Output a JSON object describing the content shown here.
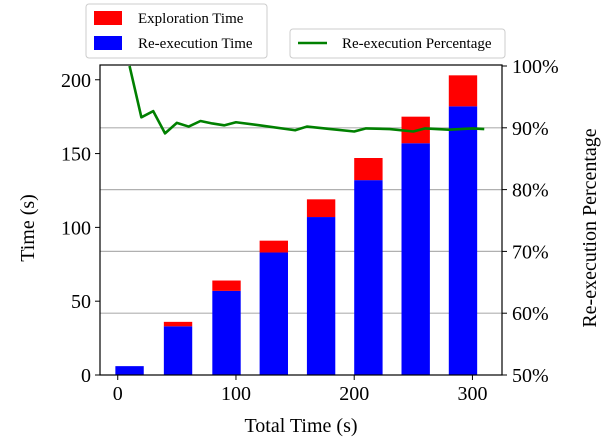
{
  "chart_data": {
    "type": "bar",
    "xlabel": "Total Time (s)",
    "ylabel": "Time (s)",
    "y2label": "Re-execution Percentage",
    "x_ticks": [
      0,
      100,
      200,
      300
    ],
    "y_ticks": [
      0,
      50,
      100,
      150,
      200
    ],
    "y2_ticks": [
      "50%",
      "60%",
      "70%",
      "80%",
      "90%",
      "100%"
    ],
    "y2_tick_values": [
      50,
      60,
      70,
      80,
      90,
      100
    ],
    "xlim": [
      -15,
      325
    ],
    "ylim": [
      0,
      210
    ],
    "y2lim": [
      50,
      100
    ],
    "stacked": true,
    "bar_width": 24,
    "x": [
      10,
      51,
      92,
      132,
      172,
      212,
      252,
      292
    ],
    "series": [
      {
        "name": "Re-execution Time",
        "color": "#0000ff",
        "values": [
          6,
          33,
          57,
          83,
          107,
          132,
          157,
          182
        ]
      },
      {
        "name": "Exploration Time",
        "color": "#ff0000",
        "values": [
          0,
          3,
          7,
          8,
          12,
          15,
          18,
          21
        ]
      }
    ],
    "line": {
      "name": "Re-execution Percentage",
      "color": "#008000",
      "axis": "right",
      "x": [
        10,
        20,
        30,
        40,
        50,
        60,
        70,
        80,
        90,
        100,
        120,
        150,
        160,
        180,
        200,
        210,
        230,
        250,
        260,
        280,
        300,
        310
      ],
      "y": [
        100,
        91.7,
        92.7,
        89.1,
        90.8,
        90.2,
        91.1,
        90.7,
        90.4,
        90.9,
        90.4,
        89.6,
        90.2,
        89.8,
        89.4,
        89.9,
        89.8,
        89.4,
        89.9,
        89.7,
        89.9,
        89.8
      ]
    },
    "grid": "horizontal (right axis)",
    "legend": {
      "bars_position": "top-left",
      "line_position": "top-right"
    }
  }
}
